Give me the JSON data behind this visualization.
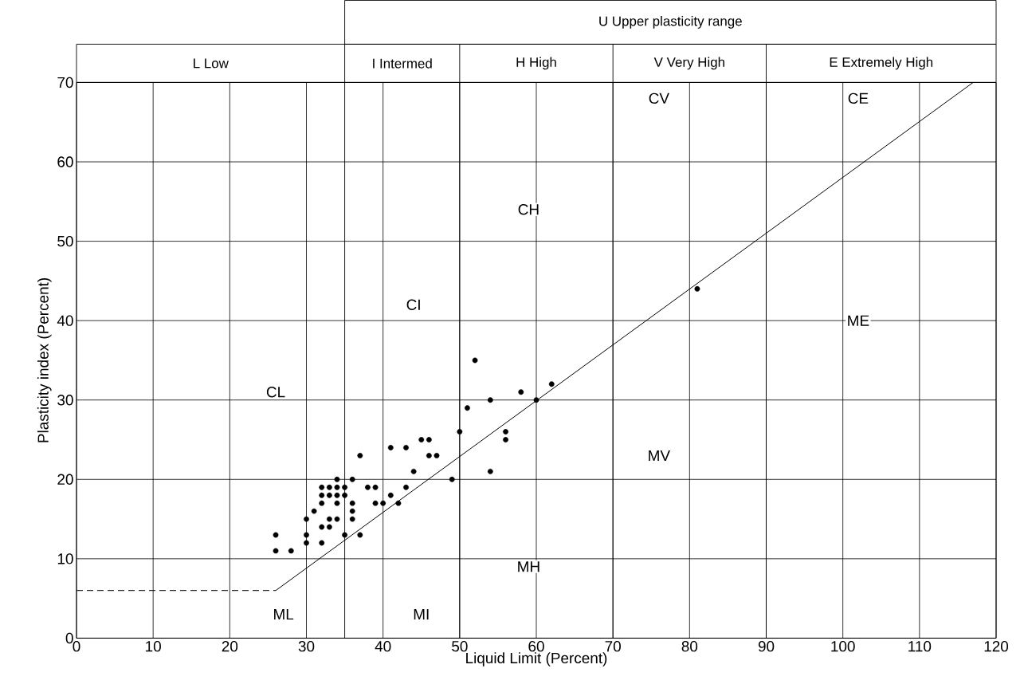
{
  "chart_data": {
    "type": "scatter",
    "xlabel": "Liquid Limit (Percent)",
    "ylabel": "Plasticity index (Percent)",
    "xlim": [
      0,
      120
    ],
    "ylim": [
      0,
      70
    ],
    "xticks": [
      0,
      10,
      20,
      30,
      40,
      50,
      60,
      70,
      80,
      90,
      100,
      110,
      120
    ],
    "yticks": [
      0,
      10,
      20,
      30,
      40,
      50,
      60,
      70
    ],
    "grid": true,
    "series": [
      {
        "color": "#000000",
        "marker": "circle",
        "x": [
          52,
          58,
          54,
          60,
          62,
          51,
          50,
          56,
          56,
          45,
          46,
          41,
          43,
          46,
          47,
          37,
          44,
          54,
          49,
          34,
          36,
          32,
          33,
          34,
          35,
          38,
          39,
          43,
          32,
          33,
          34,
          35,
          41,
          32,
          34,
          36,
          39,
          40,
          42,
          31,
          36,
          30,
          33,
          34,
          36,
          32,
          33,
          26,
          30,
          35,
          37,
          30,
          32,
          26,
          28,
          81
        ],
        "values": [
          35,
          31,
          30,
          30,
          32,
          29,
          26,
          26,
          25,
          25,
          25,
          24,
          24,
          23,
          23,
          23,
          21,
          21,
          20,
          20,
          20,
          19,
          19,
          19,
          19,
          19,
          19,
          19,
          18,
          18,
          18,
          18,
          18,
          17,
          17,
          17,
          17,
          17,
          17,
          16,
          16,
          15,
          15,
          15,
          15,
          14,
          14,
          13,
          13,
          13,
          13,
          12,
          12,
          11,
          11,
          44
        ]
      },
      {
        "type": "line",
        "color": "#000000",
        "marker": "none",
        "line_style": "solid",
        "x": [
          26,
          117
        ],
        "values": [
          6,
          70
        ]
      },
      {
        "type": "line",
        "color": "#000000",
        "marker": "none",
        "line_style": "dashed",
        "x": [
          0,
          26
        ],
        "values": [
          6,
          6
        ]
      }
    ],
    "ref_lines": [
      {
        "axis": "x",
        "value": 35
      },
      {
        "axis": "x",
        "value": 50
      },
      {
        "axis": "x",
        "value": 70
      },
      {
        "axis": "x",
        "value": 90
      }
    ],
    "annotations": [
      "U Upper plasticity range",
      "L Low",
      "I Intermed",
      "H High",
      "V Very High",
      "E Extremely High",
      {
        "text": "CV",
        "x": 76,
        "y": 68
      },
      {
        "text": "CE",
        "x": 102,
        "y": 68
      },
      {
        "text": "CH",
        "x": 59,
        "y": 54
      },
      {
        "text": "CI",
        "x": 44,
        "y": 42
      },
      {
        "text": "ME",
        "x": 102,
        "y": 40
      },
      {
        "text": "CL",
        "x": 26,
        "y": 31
      },
      {
        "text": "MV",
        "x": 76,
        "y": 23
      },
      {
        "text": "MH",
        "x": 59,
        "y": 9
      },
      {
        "text": "MI",
        "x": 45,
        "y": 3
      },
      {
        "text": "ML",
        "x": 27,
        "y": 3
      }
    ]
  }
}
